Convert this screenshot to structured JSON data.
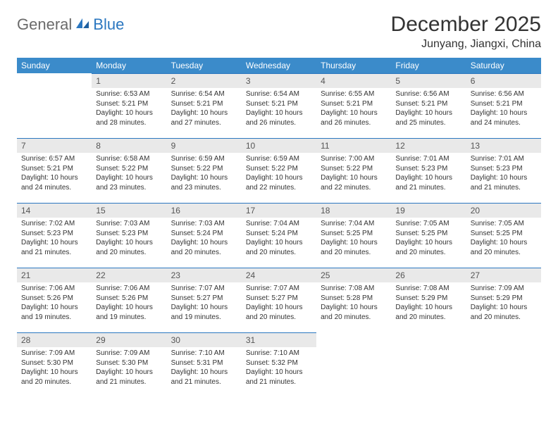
{
  "logo": {
    "part1": "General",
    "part2": "Blue"
  },
  "title": "December 2025",
  "location": "Junyang, Jiangxi, China",
  "colors": {
    "header_bg": "#3b8bca",
    "header_text": "#ffffff",
    "daynum_bg": "#e9e9e9",
    "border": "#2b77c0",
    "logo_gray": "#6a6a6a",
    "logo_blue": "#2b77c0"
  },
  "weekdays": [
    "Sunday",
    "Monday",
    "Tuesday",
    "Wednesday",
    "Thursday",
    "Friday",
    "Saturday"
  ],
  "weeks": [
    [
      {
        "num": "",
        "sunrise": "",
        "sunset": "",
        "daylight": ""
      },
      {
        "num": "1",
        "sunrise": "Sunrise: 6:53 AM",
        "sunset": "Sunset: 5:21 PM",
        "daylight": "Daylight: 10 hours and 28 minutes."
      },
      {
        "num": "2",
        "sunrise": "Sunrise: 6:54 AM",
        "sunset": "Sunset: 5:21 PM",
        "daylight": "Daylight: 10 hours and 27 minutes."
      },
      {
        "num": "3",
        "sunrise": "Sunrise: 6:54 AM",
        "sunset": "Sunset: 5:21 PM",
        "daylight": "Daylight: 10 hours and 26 minutes."
      },
      {
        "num": "4",
        "sunrise": "Sunrise: 6:55 AM",
        "sunset": "Sunset: 5:21 PM",
        "daylight": "Daylight: 10 hours and 26 minutes."
      },
      {
        "num": "5",
        "sunrise": "Sunrise: 6:56 AM",
        "sunset": "Sunset: 5:21 PM",
        "daylight": "Daylight: 10 hours and 25 minutes."
      },
      {
        "num": "6",
        "sunrise": "Sunrise: 6:56 AM",
        "sunset": "Sunset: 5:21 PM",
        "daylight": "Daylight: 10 hours and 24 minutes."
      }
    ],
    [
      {
        "num": "7",
        "sunrise": "Sunrise: 6:57 AM",
        "sunset": "Sunset: 5:21 PM",
        "daylight": "Daylight: 10 hours and 24 minutes."
      },
      {
        "num": "8",
        "sunrise": "Sunrise: 6:58 AM",
        "sunset": "Sunset: 5:22 PM",
        "daylight": "Daylight: 10 hours and 23 minutes."
      },
      {
        "num": "9",
        "sunrise": "Sunrise: 6:59 AM",
        "sunset": "Sunset: 5:22 PM",
        "daylight": "Daylight: 10 hours and 23 minutes."
      },
      {
        "num": "10",
        "sunrise": "Sunrise: 6:59 AM",
        "sunset": "Sunset: 5:22 PM",
        "daylight": "Daylight: 10 hours and 22 minutes."
      },
      {
        "num": "11",
        "sunrise": "Sunrise: 7:00 AM",
        "sunset": "Sunset: 5:22 PM",
        "daylight": "Daylight: 10 hours and 22 minutes."
      },
      {
        "num": "12",
        "sunrise": "Sunrise: 7:01 AM",
        "sunset": "Sunset: 5:23 PM",
        "daylight": "Daylight: 10 hours and 21 minutes."
      },
      {
        "num": "13",
        "sunrise": "Sunrise: 7:01 AM",
        "sunset": "Sunset: 5:23 PM",
        "daylight": "Daylight: 10 hours and 21 minutes."
      }
    ],
    [
      {
        "num": "14",
        "sunrise": "Sunrise: 7:02 AM",
        "sunset": "Sunset: 5:23 PM",
        "daylight": "Daylight: 10 hours and 21 minutes."
      },
      {
        "num": "15",
        "sunrise": "Sunrise: 7:03 AM",
        "sunset": "Sunset: 5:23 PM",
        "daylight": "Daylight: 10 hours and 20 minutes."
      },
      {
        "num": "16",
        "sunrise": "Sunrise: 7:03 AM",
        "sunset": "Sunset: 5:24 PM",
        "daylight": "Daylight: 10 hours and 20 minutes."
      },
      {
        "num": "17",
        "sunrise": "Sunrise: 7:04 AM",
        "sunset": "Sunset: 5:24 PM",
        "daylight": "Daylight: 10 hours and 20 minutes."
      },
      {
        "num": "18",
        "sunrise": "Sunrise: 7:04 AM",
        "sunset": "Sunset: 5:25 PM",
        "daylight": "Daylight: 10 hours and 20 minutes."
      },
      {
        "num": "19",
        "sunrise": "Sunrise: 7:05 AM",
        "sunset": "Sunset: 5:25 PM",
        "daylight": "Daylight: 10 hours and 20 minutes."
      },
      {
        "num": "20",
        "sunrise": "Sunrise: 7:05 AM",
        "sunset": "Sunset: 5:25 PM",
        "daylight": "Daylight: 10 hours and 20 minutes."
      }
    ],
    [
      {
        "num": "21",
        "sunrise": "Sunrise: 7:06 AM",
        "sunset": "Sunset: 5:26 PM",
        "daylight": "Daylight: 10 hours and 19 minutes."
      },
      {
        "num": "22",
        "sunrise": "Sunrise: 7:06 AM",
        "sunset": "Sunset: 5:26 PM",
        "daylight": "Daylight: 10 hours and 19 minutes."
      },
      {
        "num": "23",
        "sunrise": "Sunrise: 7:07 AM",
        "sunset": "Sunset: 5:27 PM",
        "daylight": "Daylight: 10 hours and 19 minutes."
      },
      {
        "num": "24",
        "sunrise": "Sunrise: 7:07 AM",
        "sunset": "Sunset: 5:27 PM",
        "daylight": "Daylight: 10 hours and 20 minutes."
      },
      {
        "num": "25",
        "sunrise": "Sunrise: 7:08 AM",
        "sunset": "Sunset: 5:28 PM",
        "daylight": "Daylight: 10 hours and 20 minutes."
      },
      {
        "num": "26",
        "sunrise": "Sunrise: 7:08 AM",
        "sunset": "Sunset: 5:29 PM",
        "daylight": "Daylight: 10 hours and 20 minutes."
      },
      {
        "num": "27",
        "sunrise": "Sunrise: 7:09 AM",
        "sunset": "Sunset: 5:29 PM",
        "daylight": "Daylight: 10 hours and 20 minutes."
      }
    ],
    [
      {
        "num": "28",
        "sunrise": "Sunrise: 7:09 AM",
        "sunset": "Sunset: 5:30 PM",
        "daylight": "Daylight: 10 hours and 20 minutes."
      },
      {
        "num": "29",
        "sunrise": "Sunrise: 7:09 AM",
        "sunset": "Sunset: 5:30 PM",
        "daylight": "Daylight: 10 hours and 21 minutes."
      },
      {
        "num": "30",
        "sunrise": "Sunrise: 7:10 AM",
        "sunset": "Sunset: 5:31 PM",
        "daylight": "Daylight: 10 hours and 21 minutes."
      },
      {
        "num": "31",
        "sunrise": "Sunrise: 7:10 AM",
        "sunset": "Sunset: 5:32 PM",
        "daylight": "Daylight: 10 hours and 21 minutes."
      },
      {
        "num": "",
        "sunrise": "",
        "sunset": "",
        "daylight": ""
      },
      {
        "num": "",
        "sunrise": "",
        "sunset": "",
        "daylight": ""
      },
      {
        "num": "",
        "sunrise": "",
        "sunset": "",
        "daylight": ""
      }
    ]
  ]
}
